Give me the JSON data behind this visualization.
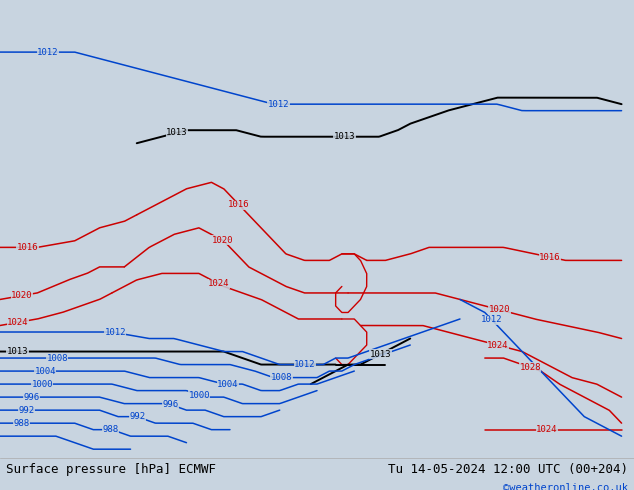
{
  "title_left": "Surface pressure [hPa] ECMWF",
  "title_right": "Tu 14-05-2024 12:00 UTC (00+204)",
  "credit": "©weatheronline.co.uk",
  "bg_color": "#c8d4e0",
  "land_color": "#b8dba8",
  "border_color": "#808080",
  "isobar_red_color": "#cc0000",
  "isobar_blue_color": "#0044cc",
  "isobar_black_color": "#000000",
  "title_fontsize": 9,
  "credit_color": "#0044cc",
  "lon_min": 94,
  "lon_max": 196,
  "lat_min": -58,
  "lat_max": 12
}
